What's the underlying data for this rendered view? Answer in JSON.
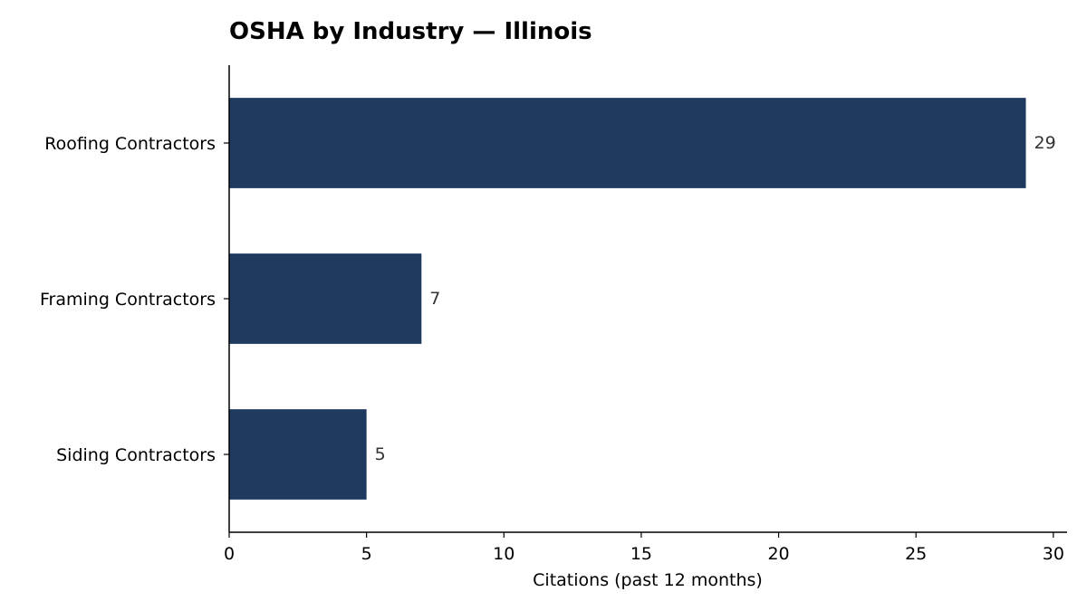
{
  "chart_data": {
    "type": "bar",
    "orientation": "horizontal",
    "title": "OSHA by Industry — Illinois",
    "xlabel": "Citations (past 12 months)",
    "ylabel": "",
    "categories": [
      "Roofing Contractors",
      "Framing Contractors",
      "Siding Contractors"
    ],
    "values": [
      29,
      7,
      5
    ],
    "data_labels": [
      "29",
      "7",
      "5"
    ],
    "xlim": [
      0,
      30.5
    ],
    "xticks": [
      0,
      5,
      10,
      15,
      20,
      25,
      30
    ],
    "xtick_labels": [
      "0",
      "5",
      "10",
      "15",
      "20",
      "25",
      "30"
    ],
    "grid": false,
    "legend": "none",
    "bar_color": "#1f3a5f"
  }
}
